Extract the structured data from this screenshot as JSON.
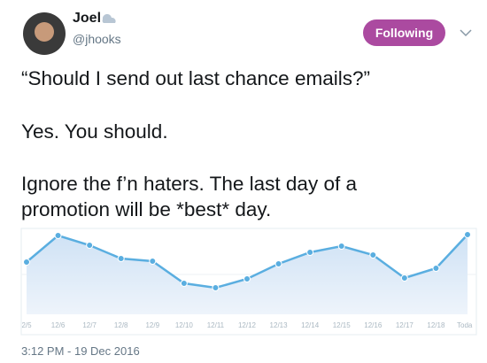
{
  "author": {
    "name": "Joel",
    "handle": "@jhooks"
  },
  "follow_button": "Following",
  "tweet": {
    "lines": [
      "“Should I send out last chance emails?”",
      "Yes. You should.",
      "Ignore the f’n haters. The last day of a promotion will be *best* day."
    ]
  },
  "timestamp": "3:12 PM - 19 Dec 2016",
  "chart_data": {
    "type": "area",
    "categories": [
      "2/5",
      "12/6",
      "12/7",
      "12/8",
      "12/9",
      "12/10",
      "12/11",
      "12/12",
      "12/13",
      "12/14",
      "12/15",
      "12/16",
      "12/17",
      "12/18",
      "Toda"
    ],
    "values": [
      59,
      89,
      78,
      63,
      60,
      35,
      30,
      40,
      57,
      70,
      77,
      67,
      41,
      52,
      90
    ],
    "color": "#5aaee0",
    "ylim": [
      0,
      100
    ]
  }
}
